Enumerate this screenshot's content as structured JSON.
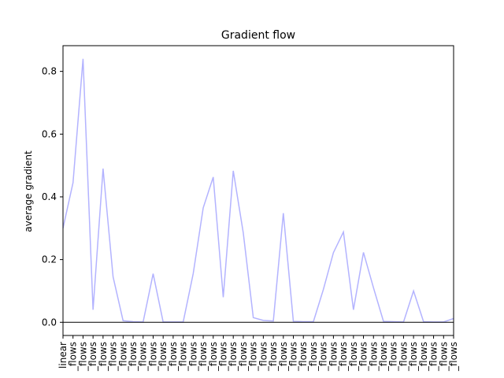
{
  "chart_data": {
    "type": "line",
    "title": "Gradient flow",
    "xlabel": "",
    "ylabel": "average gradient",
    "ylim": [
      -0.042,
      0.882
    ],
    "yticks": [
      0.0,
      0.2,
      0.4,
      0.6,
      0.8
    ],
    "ytick_labels": [
      "0.0",
      "0.2",
      "0.4",
      "0.6",
      "0.8"
    ],
    "grid": false,
    "legend": "none",
    "line_color": "#b3b3ff",
    "zero_line_color": "#000000",
    "categories": [
      "linear",
      "_flows",
      "_flows",
      "_flows",
      "_flows",
      "_flows",
      "_flows",
      "_flows",
      "_flows",
      "_flows",
      "_flows",
      "_flows",
      "_flows",
      "_flows",
      "_flows",
      "_flows",
      "_flows",
      "_flows",
      "_flows",
      "_flows",
      "_flows",
      "_flows",
      "_flows",
      "_flows",
      "_flows",
      "_flows",
      "_flows",
      "_flows",
      "_flows",
      "_flows",
      "_flows",
      "_flows",
      "_flows",
      "_flows",
      "_flows",
      "_flows",
      "_flows",
      "_flows",
      "_flows",
      "_flows"
    ],
    "series": [
      {
        "values": [
          0.3,
          0.445,
          0.84,
          0.04,
          0.49,
          0.145,
          0.005,
          0.002,
          0.001,
          0.155,
          0.001,
          0.001,
          0.001,
          0.155,
          0.365,
          0.463,
          0.08,
          0.483,
          0.285,
          0.015,
          0.006,
          0.004,
          0.348,
          0.003,
          0.002,
          0.002,
          0.105,
          0.222,
          0.288,
          0.04,
          0.223,
          0.11,
          0.003,
          0.002,
          0.001,
          0.1,
          0.002,
          0.001,
          0.001,
          0.012
        ]
      }
    ]
  }
}
